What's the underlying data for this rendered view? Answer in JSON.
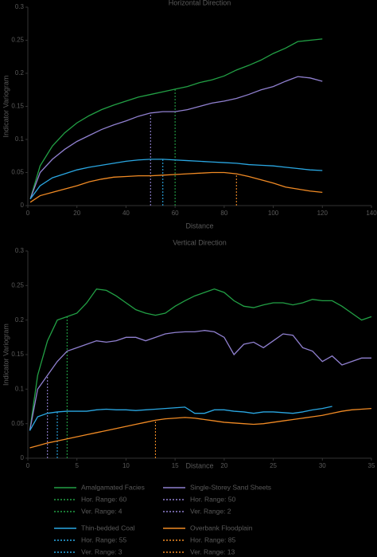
{
  "legend": [
    {
      "name": "Amalgamated Facies",
      "color": "#22a045"
    },
    {
      "name": "Single-Storey Sand Sheets",
      "color": "#9080d0"
    },
    {
      "name": "Thin-bedded Coal",
      "color": "#2aa7e2"
    },
    {
      "name": "Overbank Floodplain",
      "color": "#f08a24"
    }
  ],
  "chart_data": [
    {
      "type": "line",
      "title": "Horizontal Direction",
      "x_label": "Distance",
      "y_label": "Indicator Variogram",
      "xlim": [
        0,
        140
      ],
      "xticks": [
        0,
        20,
        40,
        60,
        80,
        100,
        120,
        140
      ],
      "ylim": [
        0,
        0.3
      ],
      "yticks": [
        0,
        0.05,
        0.1,
        0.15,
        0.2,
        0.25,
        0.3
      ],
      "x": [
        1,
        5,
        10,
        15,
        20,
        25,
        30,
        35,
        40,
        45,
        50,
        55,
        60,
        65,
        70,
        75,
        80,
        85,
        90,
        95,
        100,
        105,
        110,
        115,
        120
      ],
      "series": [
        {
          "values": [
            0.01,
            0.06,
            0.09,
            0.11,
            0.125,
            0.136,
            0.145,
            0.152,
            0.158,
            0.164,
            0.168,
            0.172,
            0.176,
            0.18,
            0.186,
            0.19,
            0.196,
            0.205,
            0.212,
            0.22,
            0.23,
            0.238,
            0.248,
            0.25,
            0.252
          ],
          "range": 60,
          "range_label": "Hor. Range: 60"
        },
        {
          "values": [
            0.01,
            0.05,
            0.07,
            0.085,
            0.097,
            0.106,
            0.115,
            0.122,
            0.128,
            0.135,
            0.14,
            0.142,
            0.142,
            0.145,
            0.15,
            0.155,
            0.158,
            0.162,
            0.168,
            0.175,
            0.18,
            0.188,
            0.195,
            0.193,
            0.188
          ],
          "range": 50,
          "range_label": "Hor. Range: 50"
        },
        {
          "values": [
            0.01,
            0.03,
            0.042,
            0.048,
            0.054,
            0.058,
            0.061,
            0.064,
            0.067,
            0.069,
            0.07,
            0.07,
            0.069,
            0.068,
            0.067,
            0.066,
            0.065,
            0.064,
            0.062,
            0.061,
            0.06,
            0.058,
            0.056,
            0.054,
            0.053
          ],
          "range": 55,
          "range_label": "Hor. Range: 55"
        },
        {
          "values": [
            0.005,
            0.015,
            0.02,
            0.025,
            0.03,
            0.036,
            0.04,
            0.043,
            0.044,
            0.045,
            0.045,
            0.046,
            0.047,
            0.048,
            0.049,
            0.05,
            0.05,
            0.048,
            0.044,
            0.039,
            0.034,
            0.028,
            0.025,
            0.022,
            0.02
          ],
          "range": 85,
          "range_label": "Hor. Range: 85"
        }
      ]
    },
    {
      "type": "line",
      "title": "Vertical Direction",
      "x_label": "Distance",
      "y_label": "Indicator Variogram",
      "xlim": [
        0,
        35
      ],
      "xticks": [
        0,
        5,
        10,
        15,
        20,
        25,
        30,
        35
      ],
      "ylim": [
        0,
        0.3
      ],
      "yticks": [
        0,
        0.05,
        0.1,
        0.15,
        0.2,
        0.25,
        0.3
      ],
      "x": [
        0.2,
        1,
        2,
        3,
        4,
        5,
        6,
        7,
        8,
        9,
        10,
        11,
        12,
        13,
        14,
        15,
        16,
        17,
        18,
        19,
        20,
        21,
        22,
        23,
        24,
        25,
        26,
        27,
        28,
        29,
        30,
        31,
        32,
        33,
        34,
        35
      ],
      "series": [
        {
          "values": [
            0.04,
            0.12,
            0.17,
            0.2,
            0.205,
            0.21,
            0.225,
            0.245,
            0.243,
            0.235,
            0.225,
            0.215,
            0.21,
            0.207,
            0.21,
            0.22,
            0.228,
            0.235,
            0.24,
            0.245,
            0.24,
            0.228,
            0.22,
            0.218,
            0.222,
            0.225,
            0.225,
            0.222,
            0.225,
            0.23,
            0.228,
            0.228,
            0.22,
            0.21,
            0.2,
            0.205
          ],
          "range": 4,
          "range_label": "Ver. Range: 4"
        },
        {
          "values": [
            0.04,
            0.1,
            0.12,
            0.14,
            0.155,
            0.16,
            0.165,
            0.17,
            0.168,
            0.17,
            0.175,
            0.175,
            0.17,
            0.175,
            0.18,
            0.182,
            0.183,
            0.183,
            0.185,
            0.183,
            0.175,
            0.15,
            0.165,
            0.168,
            0.16,
            0.17,
            0.18,
            0.178,
            0.16,
            0.155,
            0.14,
            0.148,
            0.135,
            0.14,
            0.145,
            0.145
          ],
          "range": 2,
          "range_label": "Ver. Range: 2"
        },
        {
          "values": [
            0.04,
            0.06,
            0.065,
            0.067,
            0.068,
            0.068,
            0.068,
            0.07,
            0.071,
            0.07,
            0.07,
            0.069,
            0.07,
            0.071,
            0.072,
            0.073,
            0.074,
            0.065,
            0.065,
            0.07,
            0.07,
            0.068,
            0.067,
            0.065,
            0.067,
            0.067,
            0.066,
            0.065,
            0.067,
            0.07,
            0.072,
            0.075,
            null,
            null,
            null,
            null
          ],
          "range": 3,
          "range_label": "Ver. Range: 3"
        },
        {
          "values": [
            0.015,
            0.018,
            0.022,
            0.025,
            0.028,
            0.031,
            0.034,
            0.037,
            0.04,
            0.043,
            0.046,
            0.049,
            0.052,
            0.055,
            0.057,
            0.058,
            0.059,
            0.058,
            0.056,
            0.054,
            0.052,
            0.051,
            0.05,
            0.049,
            0.05,
            0.052,
            0.054,
            0.056,
            0.058,
            0.06,
            0.062,
            0.065,
            0.068,
            0.07,
            0.071,
            0.072
          ],
          "range": 13,
          "range_label": "Ver. Range: 13"
        }
      ]
    }
  ]
}
